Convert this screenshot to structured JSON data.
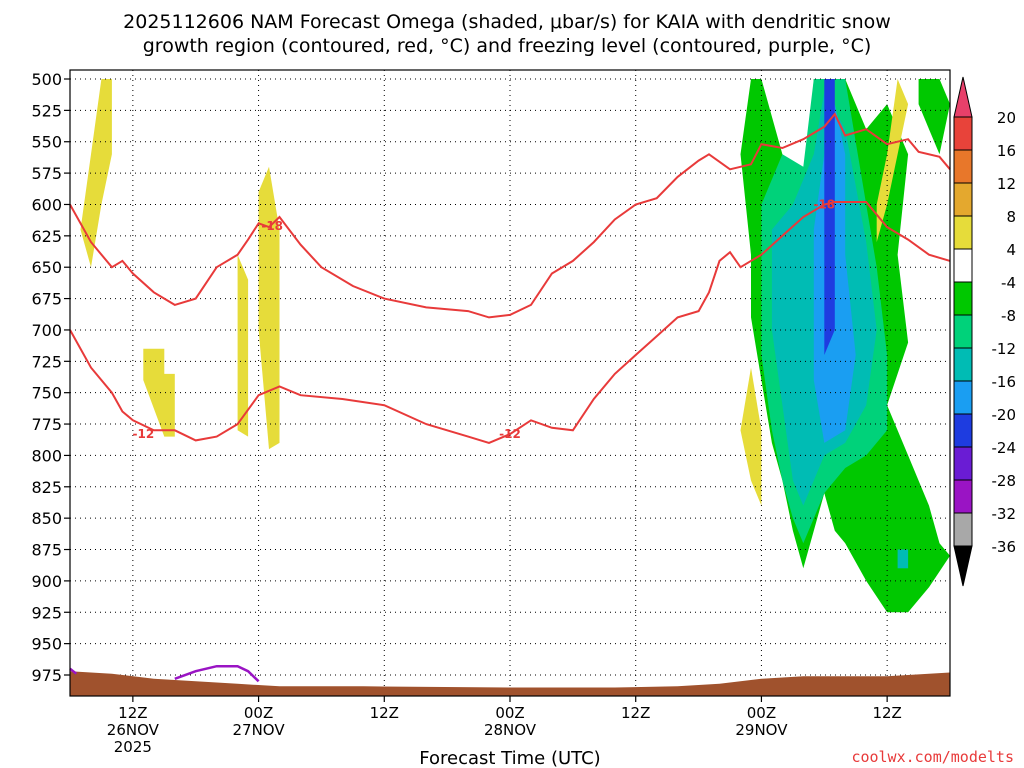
{
  "chart_data": {
    "type": "contour-shaded",
    "title_line1": "2025112606 NAM Forecast Omega (shaded, μbar/s) for KAIA with dendritic snow",
    "title_line2": "growth region (contoured, red, °C) and freezing level (contoured, purple, °C)",
    "xlabel": "Forecast Time (UTC)",
    "ylabel": "",
    "credit": "coolwx.com/modelts",
    "xlim_hours": [
      6,
      90
    ],
    "y_ticks": [
      500,
      525,
      550,
      575,
      600,
      625,
      650,
      675,
      700,
      725,
      750,
      775,
      800,
      825,
      850,
      875,
      900,
      925,
      950,
      975
    ],
    "x_ticks": [
      {
        "hour": 12,
        "line1": "12Z",
        "line2": "26NOV",
        "line3": "2025"
      },
      {
        "hour": 24,
        "line1": "00Z",
        "line2": "27NOV",
        "line3": ""
      },
      {
        "hour": 36,
        "line1": "12Z",
        "line2": "",
        "line3": ""
      },
      {
        "hour": 48,
        "line1": "00Z",
        "line2": "28NOV",
        "line3": ""
      },
      {
        "hour": 60,
        "line1": "12Z",
        "line2": "",
        "line3": ""
      },
      {
        "hour": 72,
        "line1": "00Z",
        "line2": "29NOV",
        "line3": ""
      },
      {
        "hour": 84,
        "line1": "12Z",
        "line2": "",
        "line3": ""
      }
    ],
    "colorbar": {
      "labels": [
        "20",
        "16",
        "12",
        "8",
        "4",
        "-4",
        "-8",
        "-12",
        "-16",
        "-20",
        "-24",
        "-28",
        "-32",
        "-36"
      ],
      "colors": [
        "#e8406a",
        "#e8433a",
        "#e8772a",
        "#e4a82e",
        "#e6dc3a",
        "#ffffff",
        "#00c800",
        "#00d27a",
        "#00bcb4",
        "#1a9ef2",
        "#1e3ce0",
        "#6a1cd4",
        "#9a14c4",
        "#a8a8a8",
        "#000000"
      ]
    },
    "contours_red": {
      "upper": {
        "label": "-18",
        "points": [
          [
            6,
            600
          ],
          [
            8,
            630
          ],
          [
            10,
            650
          ],
          [
            11,
            645
          ],
          [
            12,
            655
          ],
          [
            14,
            670
          ],
          [
            16,
            680
          ],
          [
            18,
            675
          ],
          [
            20,
            650
          ],
          [
            22,
            640
          ],
          [
            23,
            628
          ],
          [
            24,
            615
          ],
          [
            25,
            618
          ],
          [
            26,
            610
          ],
          [
            28,
            632
          ],
          [
            30,
            650
          ],
          [
            33,
            665
          ],
          [
            36,
            675
          ],
          [
            40,
            682
          ],
          [
            44,
            685
          ],
          [
            46,
            690
          ],
          [
            48,
            688
          ],
          [
            50,
            680
          ],
          [
            52,
            655
          ],
          [
            54,
            645
          ],
          [
            56,
            630
          ],
          [
            58,
            612
          ],
          [
            60,
            600
          ],
          [
            62,
            595
          ],
          [
            64,
            578
          ],
          [
            66,
            565
          ],
          [
            67,
            560
          ],
          [
            69,
            572
          ],
          [
            71,
            568
          ],
          [
            72,
            552
          ],
          [
            74,
            555
          ],
          [
            76,
            548
          ],
          [
            78,
            538
          ],
          [
            79,
            528
          ],
          [
            80,
            545
          ],
          [
            82,
            540
          ],
          [
            84,
            552
          ],
          [
            86,
            548
          ],
          [
            87,
            558
          ],
          [
            89,
            562
          ],
          [
            90,
            572
          ]
        ]
      },
      "lower": {
        "label": "-12",
        "points": [
          [
            6,
            700
          ],
          [
            8,
            730
          ],
          [
            10,
            750
          ],
          [
            11,
            765
          ],
          [
            12,
            772
          ],
          [
            14,
            780
          ],
          [
            16,
            780
          ],
          [
            18,
            788
          ],
          [
            20,
            785
          ],
          [
            22,
            775
          ],
          [
            24,
            752
          ],
          [
            26,
            745
          ],
          [
            28,
            752
          ],
          [
            32,
            755
          ],
          [
            36,
            760
          ],
          [
            40,
            775
          ],
          [
            44,
            785
          ],
          [
            46,
            790
          ],
          [
            48,
            783
          ],
          [
            50,
            772
          ],
          [
            52,
            778
          ],
          [
            54,
            780
          ],
          [
            56,
            755
          ],
          [
            58,
            735
          ],
          [
            60,
            720
          ],
          [
            62,
            705
          ],
          [
            64,
            690
          ],
          [
            66,
            685
          ],
          [
            67,
            670
          ],
          [
            68,
            645
          ],
          [
            69,
            638
          ],
          [
            70,
            650
          ],
          [
            72,
            640
          ],
          [
            74,
            625
          ],
          [
            76,
            610
          ],
          [
            78,
            600
          ],
          [
            79,
            598
          ],
          [
            82,
            598
          ],
          [
            84,
            618
          ],
          [
            86,
            628
          ],
          [
            88,
            640
          ],
          [
            90,
            645
          ]
        ]
      }
    },
    "contours_purple": {
      "points": [
        [
          16,
          978
        ],
        [
          18,
          972
        ],
        [
          20,
          968
        ],
        [
          22,
          968
        ],
        [
          23,
          972
        ],
        [
          24,
          980
        ]
      ]
    }
  }
}
